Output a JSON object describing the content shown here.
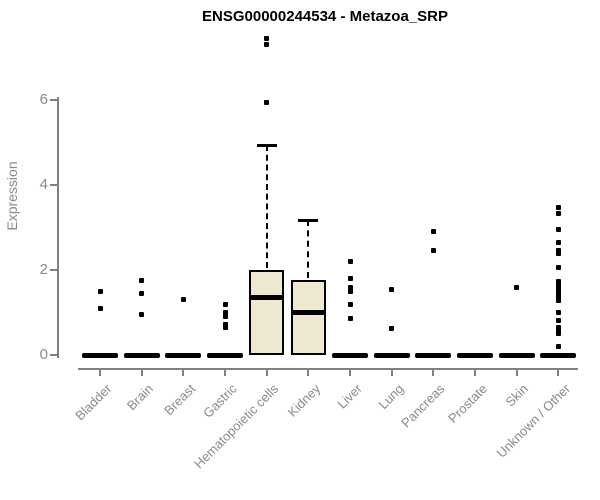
{
  "title": "ENSG00000244534 - Metazoa_SRP",
  "chart_data": {
    "type": "boxplot",
    "title": "ENSG00000244534 - Metazoa_SRP",
    "xlabel": "",
    "ylabel": "Expression",
    "yticks": [
      0,
      2,
      4,
      6
    ],
    "ylim": [
      0,
      7.6
    ],
    "grid": "off",
    "legend": "none",
    "categories": [
      "Bladder",
      "Brain",
      "Breast",
      "Gastric",
      "Hematopoietic cells",
      "Kidney",
      "Liver",
      "Lung",
      "Pancreas",
      "Prostate",
      "Skin",
      "Unknown / Other"
    ],
    "boxes": [
      {
        "name": "Bladder",
        "q1": 0,
        "median": 0,
        "q3": 0,
        "whisker_low": 0,
        "whisker_high": 0,
        "outliers": [
          1.5,
          1.1
        ]
      },
      {
        "name": "Brain",
        "q1": 0,
        "median": 0,
        "q3": 0,
        "whisker_low": 0,
        "whisker_high": 0,
        "outliers": [
          1.75,
          1.45,
          0.95
        ]
      },
      {
        "name": "Breast",
        "q1": 0,
        "median": 0,
        "q3": 0,
        "whisker_low": 0,
        "whisker_high": 0,
        "outliers": [
          1.3
        ]
      },
      {
        "name": "Gastric",
        "q1": 0,
        "median": 0,
        "q3": 0,
        "whisker_low": 0,
        "whisker_high": 0,
        "outliers": [
          1.2,
          1.0,
          0.9,
          0.72,
          0.65
        ]
      },
      {
        "name": "Hematopoietic cells",
        "q1": 0,
        "median": 1.35,
        "q3": 2.0,
        "whisker_low": 0,
        "whisker_high": 4.95,
        "outliers": [
          7.45,
          7.3,
          5.95
        ]
      },
      {
        "name": "Kidney",
        "q1": 0,
        "median": 1.0,
        "q3": 1.76,
        "whisker_low": 0,
        "whisker_high": 3.18,
        "outliers": []
      },
      {
        "name": "Liver",
        "q1": 0,
        "median": 0,
        "q3": 0,
        "whisker_low": 0,
        "whisker_high": 0,
        "outliers": [
          2.2,
          1.8,
          1.6,
          1.5,
          1.2,
          0.85
        ]
      },
      {
        "name": "Lung",
        "q1": 0,
        "median": 0,
        "q3": 0,
        "whisker_low": 0,
        "whisker_high": 0,
        "outliers": [
          1.55,
          0.63
        ]
      },
      {
        "name": "Pancreas",
        "q1": 0,
        "median": 0,
        "q3": 0,
        "whisker_low": 0,
        "whisker_high": 0,
        "outliers": [
          2.9,
          2.45
        ]
      },
      {
        "name": "Prostate",
        "q1": 0,
        "median": 0,
        "q3": 0,
        "whisker_low": 0,
        "whisker_high": 0,
        "outliers": []
      },
      {
        "name": "Skin",
        "q1": 0,
        "median": 0,
        "q3": 0,
        "whisker_low": 0,
        "whisker_high": 0,
        "outliers": [
          1.6
        ]
      },
      {
        "name": "Unknown / Other",
        "q1": 0,
        "median": 0,
        "q3": 0,
        "whisker_low": 0,
        "whisker_high": 0,
        "outliers": [
          3.48,
          3.32,
          2.95,
          2.64,
          2.45,
          2.38,
          2.07,
          1.72,
          1.66,
          1.58,
          1.5,
          1.44,
          1.36,
          1.28,
          0.99,
          0.82,
          0.64,
          0.56,
          0.5,
          0.19
        ]
      }
    ],
    "colors": {
      "box_fill": "#EDE8CF",
      "box_border": "#000000",
      "median": "#000000",
      "whisker": "#000000",
      "outlier": "#000000",
      "axis": "#808080",
      "tick_label": "#8a8a8a",
      "title": "#000000"
    }
  }
}
